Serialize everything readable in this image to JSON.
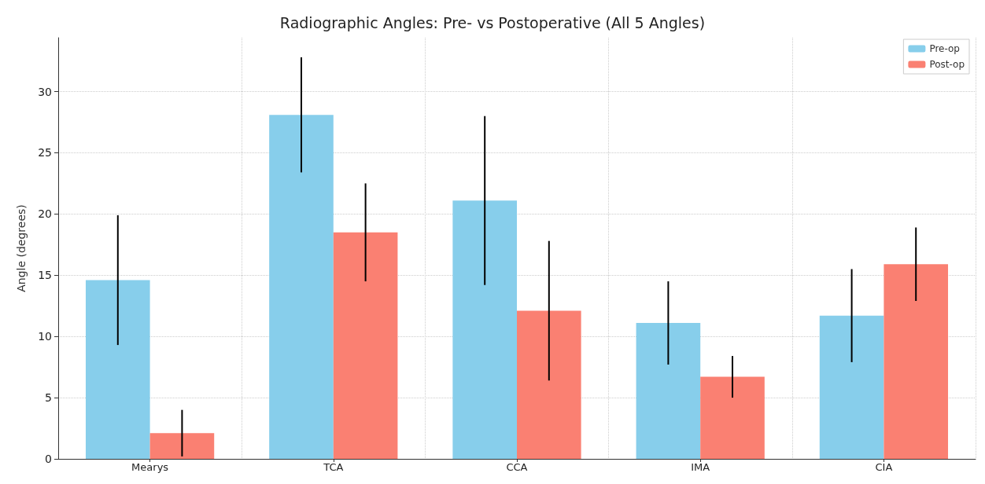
{
  "chart_data": {
    "type": "bar",
    "title": "Radiographic Angles: Pre- vs Postoperative (All 5 Angles)",
    "ylabel": "Angle (degrees)",
    "categories": [
      "Mearys",
      "TCA",
      "CCA",
      "IMA",
      "CIA"
    ],
    "series": [
      {
        "name": "Pre-op",
        "color": "#87ceeb",
        "values": [
          14.6,
          28.1,
          21.1,
          11.1,
          11.7
        ],
        "errors": [
          5.3,
          4.7,
          6.9,
          3.4,
          3.8
        ]
      },
      {
        "name": "Post-op",
        "color": "#fa8072",
        "values": [
          2.1,
          18.5,
          12.1,
          6.7,
          15.9
        ],
        "errors": [
          1.9,
          4.0,
          5.7,
          1.7,
          3.0
        ]
      }
    ],
    "ylim": [
      0,
      34.4
    ],
    "yticks": [
      0,
      5,
      10,
      15,
      20,
      25,
      30
    ],
    "grid": true,
    "legend": "top right"
  }
}
